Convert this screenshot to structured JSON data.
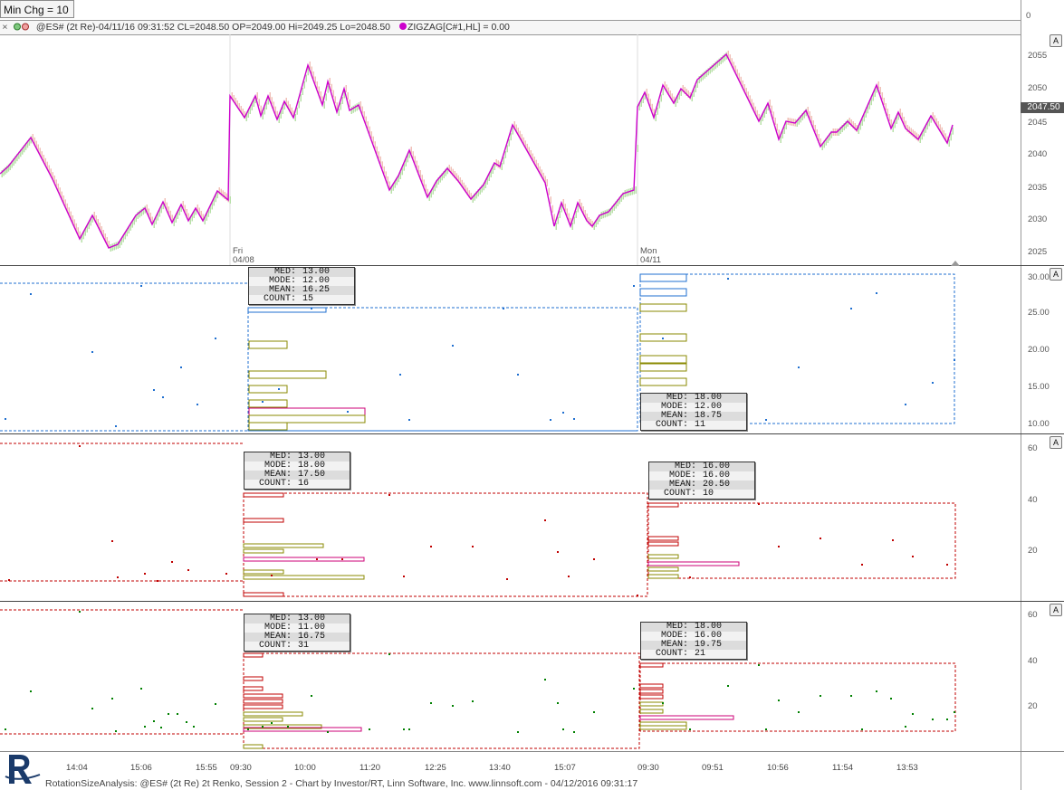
{
  "min_chg_button": "Min Chg = 10",
  "info_bar": {
    "close_symbol": "×",
    "legend_text": "@ES# (2t Re)-04/11/16 09:31:52 CL=2048.50 OP=2049.00 Hi=2049.25 Lo=2048.50",
    "zigzag_text": "ZIGZAG[C#1,HL] = 0.00"
  },
  "top_axis_zero": "0",
  "price_axis": [
    "2055",
    "2050",
    "2045",
    "2040",
    "2035",
    "2030",
    "2025"
  ],
  "last_price": "2047.50",
  "pane2_axis": [
    "30.00",
    "25.00",
    "20.00",
    "15.00",
    "10.00"
  ],
  "pane3_axis": [
    "60",
    "40",
    "20"
  ],
  "pane4_axis": [
    "60",
    "40",
    "20"
  ],
  "a_button": "A",
  "day_markers": [
    {
      "day": "Fri",
      "date": "04/08"
    },
    {
      "day": "Mon",
      "date": "04/11"
    }
  ],
  "stats_boxes": [
    {
      "med": "13.00",
      "mode": "12.00",
      "mean": "16.25",
      "count": "15"
    },
    {
      "med": "18.00",
      "mode": "12.00",
      "mean": "18.75",
      "count": "11"
    },
    {
      "med": "13.00",
      "mode": "18.00",
      "mean": "17.50",
      "count": "16"
    },
    {
      "med": "16.00",
      "mode": "16.00",
      "mean": "20.50",
      "count": "10"
    },
    {
      "med": "13.00",
      "mode": "11.00",
      "mean": "16.75",
      "count": "31"
    },
    {
      "med": "18.00",
      "mode": "16.00",
      "mean": "19.75",
      "count": "21"
    }
  ],
  "stats_labels": {
    "med": "MED:",
    "mode": "MODE:",
    "mean": "MEAN:",
    "count": "COUNT:"
  },
  "x_axis": [
    "14:04",
    "15:06",
    "15:55",
    "09:30",
    "10:00",
    "11:20",
    "12:25",
    "13:40",
    "15:07",
    "09:30",
    "09:51",
    "10:56",
    "11:54",
    "13:53"
  ],
  "footer": "RotationSizeAnalysis: @ES# (2t Re) 2t Renko, Session 2 - Chart by Investor/RT, Linn Software, Inc. www.linnsoft.com - 04/12/2016 09:31:17",
  "colors": {
    "zigzag": "#cc00cc",
    "pane2_dots": "#1f6fd0",
    "pane3_dots": "#c00000",
    "pane4_dots": "#008000",
    "histogram_olive": "#8a8a00",
    "histogram_magenta": "#cc0077"
  }
}
